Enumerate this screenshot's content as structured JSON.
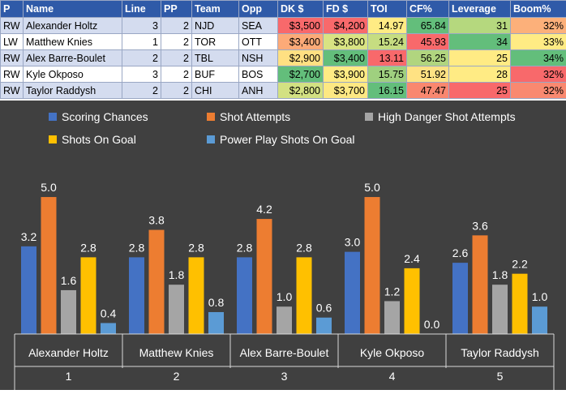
{
  "table": {
    "columns": [
      "P",
      "Name",
      "Line",
      "PP",
      "Team",
      "Opp",
      "DK $",
      "FD $",
      "TOI",
      "CF%",
      "Leverage",
      "Boom%"
    ],
    "rows": [
      {
        "pos": "RW",
        "name": "Alexander Holtz",
        "line": "3",
        "pp": "2",
        "team": "NJD",
        "opp": "SEA",
        "dk": "$3,500",
        "fd": "$4,200",
        "toi": "14.97",
        "cf": "65.84",
        "leverage": "31",
        "boom": "32%",
        "colors": {
          "dk": "#f8696b",
          "fd": "#f8696b",
          "toi": "#ffeb84",
          "cf": "#63be7b",
          "leverage": "#b5d87e",
          "boom": "#fcb07a"
        }
      },
      {
        "pos": "LW",
        "name": "Matthew Knies",
        "line": "1",
        "pp": "2",
        "team": "TOR",
        "opp": "OTT",
        "dk": "$3,400",
        "fd": "$3,800",
        "toi": "15.24",
        "cf": "45.93",
        "leverage": "34",
        "boom": "33%",
        "colors": {
          "dk": "#fcaa78",
          "fd": "#d9e383",
          "toi": "#c6dd81",
          "cf": "#f8696b",
          "leverage": "#63be7b",
          "boom": "#ffeb84"
        }
      },
      {
        "pos": "RW",
        "name": "Alex Barre-Boulet",
        "line": "2",
        "pp": "2",
        "team": "TBL",
        "opp": "NSH",
        "dk": "$2,900",
        "fd": "$3,400",
        "toi": "13.11",
        "cf": "56.25",
        "leverage": "25",
        "boom": "34%",
        "colors": {
          "dk": "#ffe082",
          "fd": "#63be7b",
          "toi": "#f8696b",
          "cf": "#b1d57f",
          "leverage": "#ffeb84",
          "boom": "#63be7b"
        }
      },
      {
        "pos": "RW",
        "name": "Kyle Okposo",
        "line": "3",
        "pp": "2",
        "team": "BUF",
        "opp": "BOS",
        "dk": "$2,700",
        "fd": "$3,900",
        "toi": "15.75",
        "cf": "51.92",
        "leverage": "28",
        "boom": "32%",
        "colors": {
          "dk": "#63be7b",
          "fd": "#ffeb84",
          "toi": "#9fd07f",
          "cf": "#ffe283",
          "leverage": "#ffeb84",
          "boom": "#f8696b"
        }
      },
      {
        "pos": "RW",
        "name": "Taylor Raddysh",
        "line": "2",
        "pp": "2",
        "team": "CHI",
        "opp": "ANH",
        "dk": "$2,800",
        "fd": "$3,700",
        "toi": "16.15",
        "cf": "47.47",
        "leverage": "25",
        "boom": "32%",
        "colors": {
          "dk": "#d3e182",
          "fd": "#fde883",
          "toi": "#63be7b",
          "cf": "#f9876f",
          "leverage": "#f8696b",
          "boom": "#f98970"
        }
      }
    ]
  },
  "chart_data": {
    "type": "bar",
    "categories": [
      "Alexander Holtz",
      "Matthew Knies",
      "Alex Barre-Boulet",
      "Kyle Okposo",
      "Taylor Raddysh"
    ],
    "category_index": [
      "1",
      "2",
      "3",
      "4",
      "5"
    ],
    "series": [
      {
        "name": "Scoring Chances",
        "values": [
          3.2,
          2.8,
          2.8,
          3.0,
          2.6
        ],
        "color": "#4472c4"
      },
      {
        "name": "Shot Attempts",
        "values": [
          5.0,
          3.8,
          4.2,
          5.0,
          3.6
        ],
        "color": "#ed7d31"
      },
      {
        "name": "High Danger Shot Attempts",
        "values": [
          1.6,
          1.8,
          1.0,
          1.2,
          1.8
        ],
        "color": "#a5a5a5"
      },
      {
        "name": "Shots On Goal",
        "values": [
          2.8,
          2.8,
          2.8,
          2.4,
          2.2
        ],
        "color": "#ffc000"
      },
      {
        "name": "Power Play Shots On Goal",
        "values": [
          0.4,
          0.8,
          0.6,
          0.0,
          1.0
        ],
        "color": "#5b9bd5"
      }
    ],
    "ylim": [
      0,
      5.8
    ],
    "grid": false,
    "legend_position": "top",
    "background": "#404040"
  }
}
